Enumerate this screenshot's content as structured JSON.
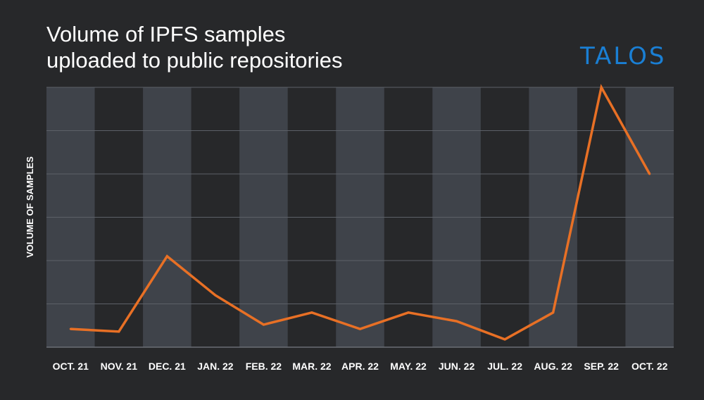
{
  "title_lines": [
    "Volume of IPFS samples",
    "uploaded to public repositories"
  ],
  "logo_text": "TALOS",
  "colors": {
    "background": "#27282a",
    "band": "#3f434a",
    "grid": "#5d6168",
    "line": "#e87025",
    "logo": "#1a7fd4",
    "text": "#ffffff"
  },
  "chart_data": {
    "type": "line",
    "title": "Volume of IPFS samples uploaded to public repositories",
    "xlabel": "",
    "ylabel": "VOLUME OF SAMPLES",
    "categories": [
      "OCT. 21",
      "NOV. 21",
      "DEC. 21",
      "JAN. 22",
      "FEB. 22",
      "MAR. 22",
      "APR. 22",
      "MAY. 22",
      "JUN. 22",
      "JUL. 22",
      "AUG. 22",
      "SEP. 22",
      "OCT. 22"
    ],
    "series": [
      {
        "values": [
          0.42,
          0.36,
          2.1,
          1.2,
          0.52,
          0.8,
          0.42,
          0.8,
          0.6,
          0.18,
          0.8,
          6.0,
          4.0
        ]
      }
    ],
    "ylim": [
      0,
      6
    ],
    "y_tick_labels_shown": false,
    "grid": true,
    "legend": "none"
  }
}
